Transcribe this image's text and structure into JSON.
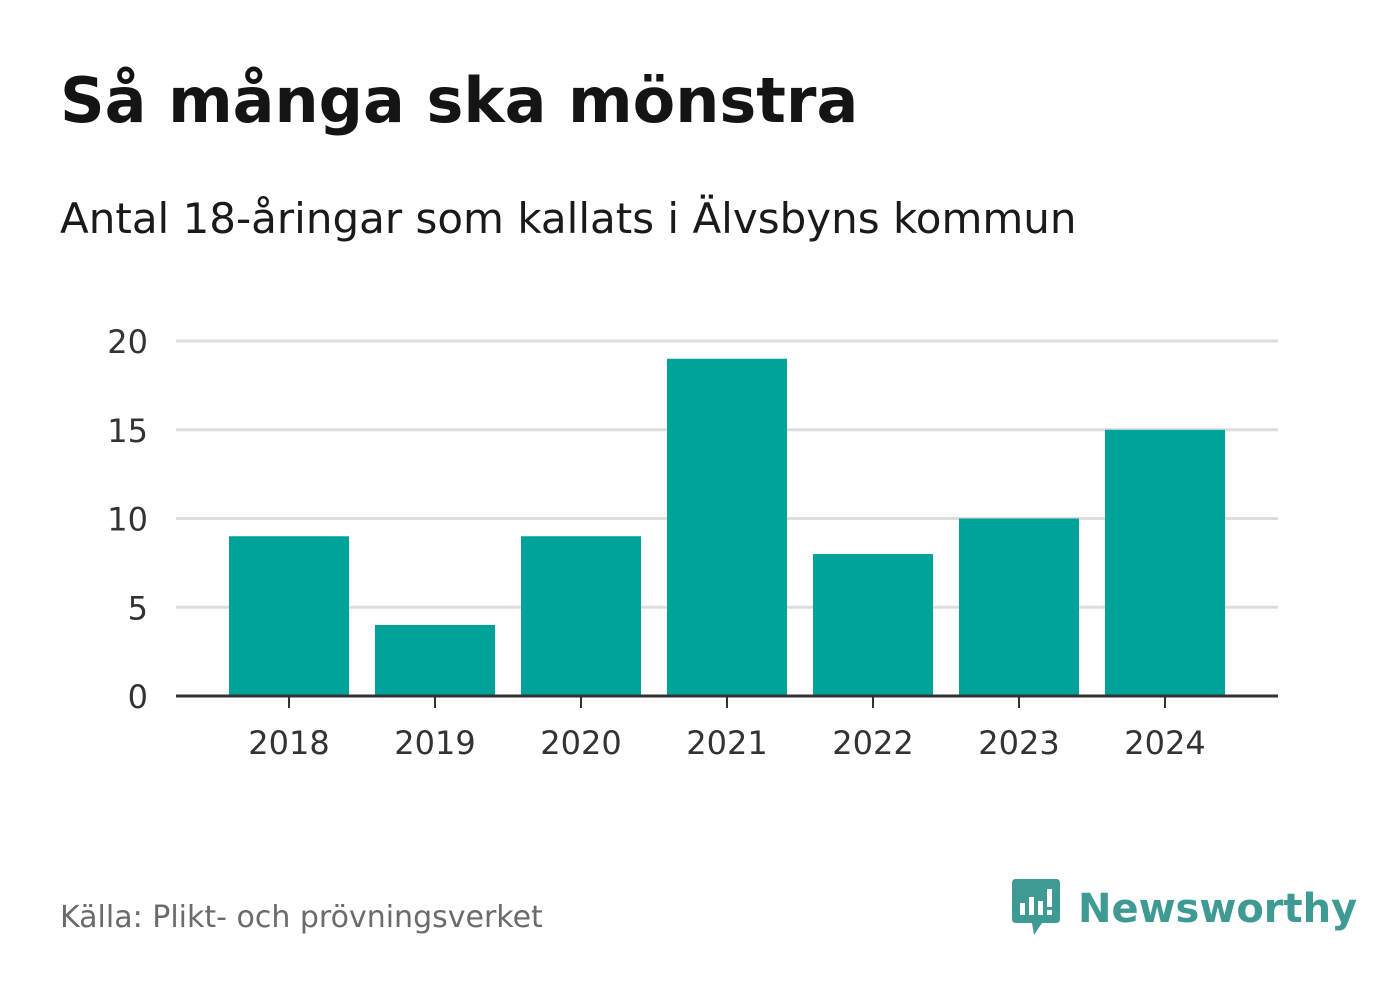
{
  "header": {
    "title": "Så många ska mönstra",
    "subtitle": "Antal 18-åringar som kallats i Älvsbyns kommun"
  },
  "footer": {
    "source": "Källa: Plikt- och prövningsverket",
    "brand_name": "Newsworthy",
    "brand_icon": "chart-speech-bubble-icon"
  },
  "colors": {
    "bar": "#00a39a",
    "grid": "#dddddd",
    "axis": "#333333",
    "tick_text": "#333333",
    "brand": "#3f9a93"
  },
  "chart_data": {
    "type": "bar",
    "title": "Så många ska mönstra",
    "subtitle": "Antal 18-åringar som kallats i Älvsbyns kommun",
    "xlabel": "",
    "ylabel": "",
    "categories": [
      "2018",
      "2019",
      "2020",
      "2021",
      "2022",
      "2023",
      "2024"
    ],
    "values": [
      9,
      4,
      9,
      19,
      8,
      10,
      15
    ],
    "ylim": [
      0,
      20
    ],
    "yticks": [
      0,
      5,
      10,
      15,
      20
    ],
    "grid": true,
    "legend": "none"
  }
}
